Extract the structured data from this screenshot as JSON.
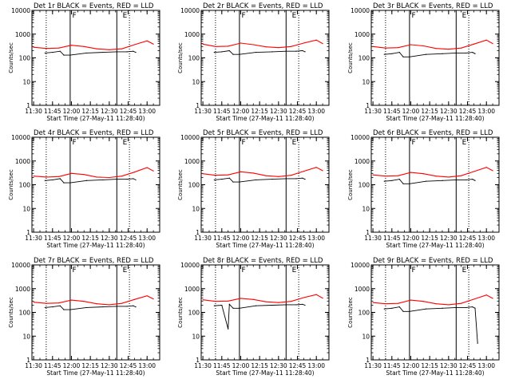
{
  "chart_data": [
    {
      "type": "line",
      "title": "Det 1r BLACK = Events, RED = LLD",
      "ylabel": "Counts/sec",
      "xlabel": "Start Time (27-May-11 11:28:40)",
      "xtick_labels": [
        "11:30",
        "11:45",
        "12:00",
        "12:15",
        "12:30",
        "12:45",
        "13:00"
      ],
      "ytick_labels": [
        "1",
        "10",
        "100",
        "1000",
        "10000"
      ],
      "y_scale": "log",
      "ylim": [
        1,
        10000
      ],
      "xlim": [
        "11:28:40",
        "13:10:00"
      ],
      "annotations": [
        {
          "text": "F",
          "x": "12:00"
        },
        {
          "text": "E",
          "x": "12:40"
        }
      ],
      "vlines_solid": [
        "11:59",
        "12:36"
      ],
      "vlines_dotted": [
        "11:40",
        "12:46"
      ],
      "series": [
        {
          "name": "LLD",
          "color": "#ff0000",
          "x": [
            "11:30",
            "11:40",
            "11:50",
            "12:00",
            "12:10",
            "12:20",
            "12:30",
            "12:40",
            "12:50",
            "13:00",
            "13:05"
          ],
          "y": [
            280,
            250,
            260,
            340,
            300,
            240,
            220,
            240,
            360,
            520,
            380
          ]
        },
        {
          "name": "Events",
          "color": "#000000",
          "x": [
            "11:39",
            "11:45",
            "11:51",
            "11:54",
            "11:59",
            "12:12",
            "12:25",
            "12:36",
            "12:44",
            "12:49",
            "12:51"
          ],
          "y": [
            160,
            170,
            190,
            130,
            130,
            160,
            170,
            180,
            180,
            190,
            170
          ]
        }
      ]
    },
    {
      "type": "line",
      "title": "Det 2r BLACK = Events, RED = LLD",
      "ylabel": "Counts/sec",
      "xlabel": "Start Time (27-May-11 11:28:40)",
      "xtick_labels": [
        "11:30",
        "11:45",
        "12:00",
        "12:15",
        "12:30",
        "12:45",
        "13:00"
      ],
      "ytick_labels": [
        "1",
        "10",
        "100",
        "1000",
        "10000"
      ],
      "y_scale": "log",
      "ylim": [
        1,
        10000
      ],
      "xlim": [
        "11:28:40",
        "13:10:00"
      ],
      "annotations": [
        {
          "text": "F",
          "x": "12:00"
        },
        {
          "text": "E",
          "x": "12:40"
        }
      ],
      "vlines_solid": [
        "11:59",
        "12:36"
      ],
      "vlines_dotted": [
        "11:40",
        "12:46"
      ],
      "series": [
        {
          "name": "LLD",
          "color": "#ff0000",
          "x": [
            "11:30",
            "11:40",
            "11:50",
            "12:00",
            "12:10",
            "12:20",
            "12:30",
            "12:40",
            "12:50",
            "13:00",
            "13:05"
          ],
          "y": [
            380,
            300,
            310,
            420,
            360,
            290,
            270,
            300,
            420,
            560,
            400
          ]
        },
        {
          "name": "Events",
          "color": "#000000",
          "x": [
            "11:39",
            "11:45",
            "11:51",
            "11:54",
            "11:59",
            "12:12",
            "12:25",
            "12:36",
            "12:44",
            "12:49",
            "12:51"
          ],
          "y": [
            170,
            180,
            200,
            140,
            140,
            170,
            180,
            190,
            190,
            200,
            180
          ]
        }
      ]
    },
    {
      "type": "line",
      "title": "Det 3r BLACK = Events, RED = LLD",
      "ylabel": "Counts/sec",
      "xlabel": "Start Time (27-May-11 11:28:40)",
      "xtick_labels": [
        "11:30",
        "11:45",
        "12:00",
        "12:15",
        "12:30",
        "12:45",
        "13:00"
      ],
      "ytick_labels": [
        "1",
        "10",
        "100",
        "1000",
        "10000"
      ],
      "y_scale": "log",
      "ylim": [
        1,
        10000
      ],
      "xlim": [
        "11:28:40",
        "13:10:00"
      ],
      "annotations": [
        {
          "text": "F",
          "x": "12:00"
        },
        {
          "text": "E",
          "x": "12:40"
        }
      ],
      "vlines_solid": [
        "11:59",
        "12:36"
      ],
      "vlines_dotted": [
        "11:40",
        "12:46"
      ],
      "series": [
        {
          "name": "LLD",
          "color": "#ff0000",
          "x": [
            "11:30",
            "11:40",
            "11:50",
            "12:00",
            "12:10",
            "12:20",
            "12:30",
            "12:40",
            "12:50",
            "13:00",
            "13:05"
          ],
          "y": [
            300,
            260,
            270,
            360,
            320,
            250,
            230,
            260,
            380,
            560,
            400
          ]
        },
        {
          "name": "Events",
          "color": "#000000",
          "x": [
            "11:39",
            "11:45",
            "11:51",
            "11:54",
            "11:59",
            "12:12",
            "12:25",
            "12:36",
            "12:44",
            "12:49",
            "12:51"
          ],
          "y": [
            140,
            150,
            170,
            110,
            110,
            140,
            150,
            160,
            160,
            170,
            150
          ]
        }
      ]
    },
    {
      "type": "line",
      "title": "Det 4r BLACK = Events, RED = LLD",
      "ylabel": "Counts/sec",
      "xlabel": "Start Time (27-May-11 11:28:40)",
      "xtick_labels": [
        "11:30",
        "11:45",
        "12:00",
        "12:15",
        "12:30",
        "12:45",
        "13:00"
      ],
      "ytick_labels": [
        "1",
        "10",
        "100",
        "1000",
        "10000"
      ],
      "y_scale": "log",
      "ylim": [
        1,
        10000
      ],
      "xlim": [
        "11:28:40",
        "13:10:00"
      ],
      "annotations": [
        {
          "text": "F",
          "x": "12:00"
        },
        {
          "text": "E",
          "x": "12:40"
        }
      ],
      "vlines_solid": [
        "11:59",
        "12:36"
      ],
      "vlines_dotted": [
        "11:40",
        "12:46"
      ],
      "series": [
        {
          "name": "LLD",
          "color": "#ff0000",
          "x": [
            "11:30",
            "11:40",
            "11:50",
            "12:00",
            "12:10",
            "12:20",
            "12:30",
            "12:40",
            "12:50",
            "13:00",
            "13:05"
          ],
          "y": [
            230,
            210,
            220,
            300,
            270,
            210,
            200,
            230,
            340,
            530,
            380
          ]
        },
        {
          "name": "Events",
          "color": "#000000",
          "x": [
            "11:39",
            "11:45",
            "11:51",
            "11:54",
            "11:59",
            "12:12",
            "12:25",
            "12:36",
            "12:44",
            "12:49",
            "12:51"
          ],
          "y": [
            150,
            160,
            180,
            120,
            120,
            150,
            160,
            170,
            170,
            180,
            160
          ]
        }
      ]
    },
    {
      "type": "line",
      "title": "Det 5r BLACK = Events, RED = LLD",
      "ylabel": "Counts/sec",
      "xlabel": "Start Time (27-May-11 11:28:40)",
      "xtick_labels": [
        "11:30",
        "11:45",
        "12:00",
        "12:15",
        "12:30",
        "12:45",
        "13:00"
      ],
      "ytick_labels": [
        "1",
        "10",
        "100",
        "1000",
        "10000"
      ],
      "y_scale": "log",
      "ylim": [
        1,
        10000
      ],
      "xlim": [
        "11:28:40",
        "13:10:00"
      ],
      "annotations": [
        {
          "text": "F",
          "x": "12:00"
        },
        {
          "text": "E",
          "x": "12:40"
        }
      ],
      "vlines_solid": [
        "11:59",
        "12:36"
      ],
      "vlines_dotted": [
        "11:40",
        "12:46"
      ],
      "series": [
        {
          "name": "LLD",
          "color": "#ff0000",
          "x": [
            "11:30",
            "11:40",
            "11:50",
            "12:00",
            "12:10",
            "12:20",
            "12:30",
            "12:40",
            "12:50",
            "13:00",
            "13:05"
          ],
          "y": [
            290,
            250,
            260,
            350,
            310,
            240,
            220,
            250,
            370,
            540,
            390
          ]
        },
        {
          "name": "Events",
          "color": "#000000",
          "x": [
            "11:39",
            "11:45",
            "11:51",
            "11:54",
            "11:59",
            "12:12",
            "12:25",
            "12:36",
            "12:44",
            "12:49",
            "12:51"
          ],
          "y": [
            160,
            170,
            190,
            130,
            130,
            160,
            170,
            180,
            180,
            190,
            170
          ]
        }
      ]
    },
    {
      "type": "line",
      "title": "Det 6r BLACK = Events, RED = LLD",
      "ylabel": "Counts/sec",
      "xlabel": "Start Time (27-May-11 11:28:40)",
      "xtick_labels": [
        "11:30",
        "11:45",
        "12:00",
        "12:15",
        "12:30",
        "12:45",
        "13:00"
      ],
      "ytick_labels": [
        "1",
        "10",
        "100",
        "1000",
        "10000"
      ],
      "y_scale": "log",
      "ylim": [
        1,
        10000
      ],
      "xlim": [
        "11:28:40",
        "13:10:00"
      ],
      "annotations": [
        {
          "text": "F",
          "x": "12:00"
        },
        {
          "text": "E",
          "x": "12:40"
        }
      ],
      "vlines_solid": [
        "11:59",
        "12:36"
      ],
      "vlines_dotted": [
        "11:40",
        "12:46"
      ],
      "series": [
        {
          "name": "LLD",
          "color": "#ff0000",
          "x": [
            "11:30",
            "11:40",
            "11:50",
            "12:00",
            "12:10",
            "12:20",
            "12:30",
            "12:40",
            "12:50",
            "13:00",
            "13:05"
          ],
          "y": [
            260,
            230,
            240,
            330,
            290,
            230,
            210,
            240,
            360,
            540,
            390
          ]
        },
        {
          "name": "Events",
          "color": "#000000",
          "x": [
            "11:39",
            "11:45",
            "11:51",
            "11:54",
            "11:59",
            "12:12",
            "12:25",
            "12:36",
            "12:44",
            "12:49",
            "12:51"
          ],
          "y": [
            140,
            150,
            170,
            110,
            110,
            140,
            150,
            160,
            160,
            170,
            150
          ]
        }
      ]
    },
    {
      "type": "line",
      "title": "Det 7r BLACK = Events, RED = LLD",
      "ylabel": "Counts/sec",
      "xlabel": "Start Time (27-May-11 11:28:40)",
      "xtick_labels": [
        "11:30",
        "11:45",
        "12:00",
        "12:15",
        "12:30",
        "12:45",
        "13:00"
      ],
      "ytick_labels": [
        "1",
        "10",
        "100",
        "1000",
        "10000"
      ],
      "y_scale": "log",
      "ylim": [
        1,
        10000
      ],
      "xlim": [
        "11:28:40",
        "13:10:00"
      ],
      "annotations": [
        {
          "text": "F",
          "x": "12:00"
        },
        {
          "text": "E",
          "x": "12:40"
        }
      ],
      "vlines_solid": [
        "11:59",
        "12:36"
      ],
      "vlines_dotted": [
        "11:40",
        "12:46"
      ],
      "series": [
        {
          "name": "LLD",
          "color": "#ff0000",
          "x": [
            "11:30",
            "11:40",
            "11:50",
            "12:00",
            "12:10",
            "12:20",
            "12:30",
            "12:40",
            "12:50",
            "13:00",
            "13:05"
          ],
          "y": [
            270,
            240,
            250,
            330,
            290,
            230,
            210,
            240,
            350,
            500,
            370
          ]
        },
        {
          "name": "Events",
          "color": "#000000",
          "x": [
            "11:39",
            "11:45",
            "11:51",
            "11:54",
            "11:59",
            "12:12",
            "12:25",
            "12:36",
            "12:44",
            "12:49",
            "12:51"
          ],
          "y": [
            160,
            170,
            190,
            130,
            130,
            160,
            170,
            180,
            180,
            190,
            170
          ]
        }
      ]
    },
    {
      "type": "line",
      "title": "Det 8r BLACK = Events, RED = LLD",
      "ylabel": "Counts/sec",
      "xlabel": "Start Time (27-May-11 11:28:40)",
      "xtick_labels": [
        "11:30",
        "11:45",
        "12:00",
        "12:15",
        "12:30",
        "12:45",
        "13:00"
      ],
      "ytick_labels": [
        "1",
        "10",
        "100",
        "1000",
        "10000"
      ],
      "y_scale": "log",
      "ylim": [
        1,
        10000
      ],
      "xlim": [
        "11:28:40",
        "13:10:00"
      ],
      "annotations": [
        {
          "text": "F",
          "x": "12:00"
        },
        {
          "text": "E",
          "x": "12:40"
        }
      ],
      "vlines_solid": [
        "11:59",
        "12:36"
      ],
      "vlines_dotted": [
        "11:40",
        "12:46"
      ],
      "series": [
        {
          "name": "LLD",
          "color": "#ff0000",
          "x": [
            "11:30",
            "11:40",
            "11:50",
            "12:00",
            "12:10",
            "12:20",
            "12:30",
            "12:40",
            "12:50",
            "13:00",
            "13:05"
          ],
          "y": [
            340,
            290,
            300,
            390,
            350,
            280,
            260,
            290,
            420,
            560,
            400
          ]
        },
        {
          "name": "Events",
          "color": "#000000",
          "x": [
            "11:39",
            "11:45",
            "11:50",
            "11:51",
            "11:54",
            "11:59",
            "12:12",
            "12:25",
            "12:36",
            "12:44",
            "12:49",
            "12:51"
          ],
          "y": [
            190,
            200,
            20,
            220,
            150,
            150,
            190,
            200,
            210,
            210,
            220,
            200
          ]
        }
      ]
    },
    {
      "type": "line",
      "title": "Det 9r BLACK = Events, RED = LLD",
      "ylabel": "Counts/sec",
      "xlabel": "Start Time (27-May-11 11:28:40)",
      "xtick_labels": [
        "11:30",
        "11:45",
        "12:00",
        "12:15",
        "12:30",
        "12:45",
        "13:00"
      ],
      "ytick_labels": [
        "1",
        "10",
        "100",
        "1000",
        "10000"
      ],
      "y_scale": "log",
      "ylim": [
        1,
        10000
      ],
      "xlim": [
        "11:28:40",
        "13:10:00"
      ],
      "annotations": [
        {
          "text": "F",
          "x": "12:00"
        },
        {
          "text": "E",
          "x": "12:40"
        }
      ],
      "vlines_solid": [
        "11:59",
        "12:36"
      ],
      "vlines_dotted": [
        "11:40",
        "12:46"
      ],
      "series": [
        {
          "name": "LLD",
          "color": "#ff0000",
          "x": [
            "11:30",
            "11:40",
            "11:50",
            "12:00",
            "12:10",
            "12:20",
            "12:30",
            "12:40",
            "12:50",
            "13:00",
            "13:05"
          ],
          "y": [
            260,
            230,
            240,
            330,
            290,
            230,
            210,
            240,
            360,
            540,
            390
          ]
        },
        {
          "name": "Events",
          "color": "#000000",
          "x": [
            "11:39",
            "11:45",
            "11:51",
            "11:54",
            "11:59",
            "12:12",
            "12:25",
            "12:36",
            "12:44",
            "12:49",
            "12:51",
            "12:53"
          ],
          "y": [
            140,
            150,
            170,
            110,
            110,
            140,
            150,
            160,
            160,
            170,
            150,
            5
          ]
        }
      ]
    }
  ]
}
